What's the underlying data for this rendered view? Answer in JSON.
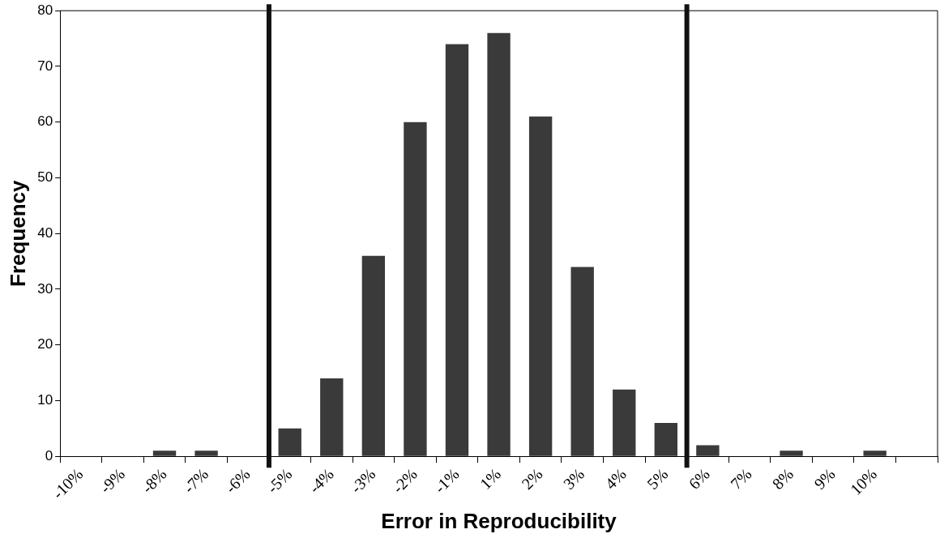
{
  "chart_data": {
    "type": "bar",
    "xlabel": "Error in Reproducibility",
    "ylabel": "Frequency",
    "categories": [
      "-10%",
      "-9%",
      "-8%",
      "-7%",
      "-6%",
      "-5%",
      "-4%",
      "-3%",
      "-2%",
      "-1%",
      "1%",
      "2%",
      "3%",
      "4%",
      "5%",
      "6%",
      "7%",
      "8%",
      "9%",
      "10%",
      null
    ],
    "values": [
      0,
      0,
      1,
      1,
      0,
      5,
      14,
      36,
      60,
      74,
      76,
      61,
      34,
      12,
      6,
      2,
      0,
      1,
      0,
      1,
      0
    ],
    "color": "#3a3a3a",
    "ylim": [
      0,
      80
    ],
    "yticks": [
      0,
      10,
      20,
      30,
      40,
      50,
      60,
      70,
      80
    ],
    "grid": false,
    "legend": false,
    "ref_lines": [
      {
        "axis": "x",
        "value": "-5%",
        "color": "#111111"
      },
      {
        "axis": "x",
        "value": "6%",
        "color": "#111111"
      }
    ]
  }
}
